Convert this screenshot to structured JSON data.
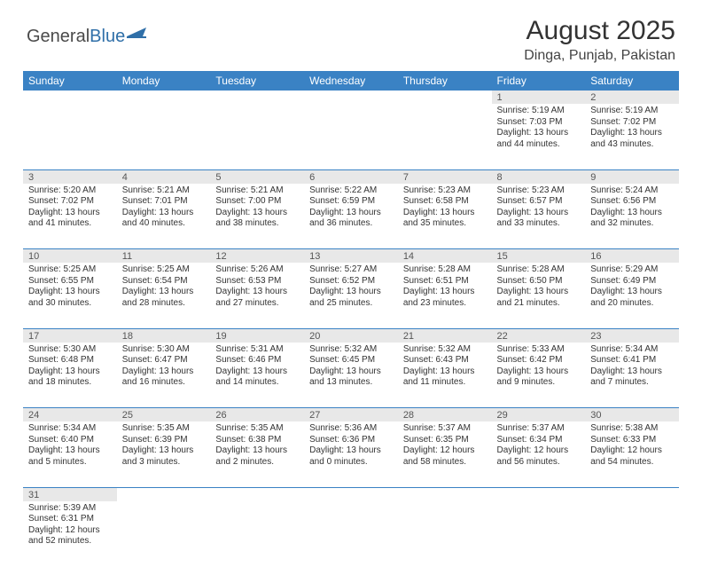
{
  "logo": {
    "part1": "General",
    "part2": "Blue"
  },
  "title": "August 2025",
  "location": "Dinga, Punjab, Pakistan",
  "colors": {
    "header_bg": "#3a82c4",
    "header_text": "#ffffff",
    "daynum_bg": "#e8e8e8",
    "row_divider": "#3a82c4",
    "logo_blue": "#2f6fa8",
    "logo_gray": "#4a4a4a"
  },
  "days_of_week": [
    "Sunday",
    "Monday",
    "Tuesday",
    "Wednesday",
    "Thursday",
    "Friday",
    "Saturday"
  ],
  "weeks": [
    [
      null,
      null,
      null,
      null,
      null,
      {
        "n": "1",
        "sunrise": "Sunrise: 5:19 AM",
        "sunset": "Sunset: 7:03 PM",
        "daylight": "Daylight: 13 hours and 44 minutes."
      },
      {
        "n": "2",
        "sunrise": "Sunrise: 5:19 AM",
        "sunset": "Sunset: 7:02 PM",
        "daylight": "Daylight: 13 hours and 43 minutes."
      }
    ],
    [
      {
        "n": "3",
        "sunrise": "Sunrise: 5:20 AM",
        "sunset": "Sunset: 7:02 PM",
        "daylight": "Daylight: 13 hours and 41 minutes."
      },
      {
        "n": "4",
        "sunrise": "Sunrise: 5:21 AM",
        "sunset": "Sunset: 7:01 PM",
        "daylight": "Daylight: 13 hours and 40 minutes."
      },
      {
        "n": "5",
        "sunrise": "Sunrise: 5:21 AM",
        "sunset": "Sunset: 7:00 PM",
        "daylight": "Daylight: 13 hours and 38 minutes."
      },
      {
        "n": "6",
        "sunrise": "Sunrise: 5:22 AM",
        "sunset": "Sunset: 6:59 PM",
        "daylight": "Daylight: 13 hours and 36 minutes."
      },
      {
        "n": "7",
        "sunrise": "Sunrise: 5:23 AM",
        "sunset": "Sunset: 6:58 PM",
        "daylight": "Daylight: 13 hours and 35 minutes."
      },
      {
        "n": "8",
        "sunrise": "Sunrise: 5:23 AM",
        "sunset": "Sunset: 6:57 PM",
        "daylight": "Daylight: 13 hours and 33 minutes."
      },
      {
        "n": "9",
        "sunrise": "Sunrise: 5:24 AM",
        "sunset": "Sunset: 6:56 PM",
        "daylight": "Daylight: 13 hours and 32 minutes."
      }
    ],
    [
      {
        "n": "10",
        "sunrise": "Sunrise: 5:25 AM",
        "sunset": "Sunset: 6:55 PM",
        "daylight": "Daylight: 13 hours and 30 minutes."
      },
      {
        "n": "11",
        "sunrise": "Sunrise: 5:25 AM",
        "sunset": "Sunset: 6:54 PM",
        "daylight": "Daylight: 13 hours and 28 minutes."
      },
      {
        "n": "12",
        "sunrise": "Sunrise: 5:26 AM",
        "sunset": "Sunset: 6:53 PM",
        "daylight": "Daylight: 13 hours and 27 minutes."
      },
      {
        "n": "13",
        "sunrise": "Sunrise: 5:27 AM",
        "sunset": "Sunset: 6:52 PM",
        "daylight": "Daylight: 13 hours and 25 minutes."
      },
      {
        "n": "14",
        "sunrise": "Sunrise: 5:28 AM",
        "sunset": "Sunset: 6:51 PM",
        "daylight": "Daylight: 13 hours and 23 minutes."
      },
      {
        "n": "15",
        "sunrise": "Sunrise: 5:28 AM",
        "sunset": "Sunset: 6:50 PM",
        "daylight": "Daylight: 13 hours and 21 minutes."
      },
      {
        "n": "16",
        "sunrise": "Sunrise: 5:29 AM",
        "sunset": "Sunset: 6:49 PM",
        "daylight": "Daylight: 13 hours and 20 minutes."
      }
    ],
    [
      {
        "n": "17",
        "sunrise": "Sunrise: 5:30 AM",
        "sunset": "Sunset: 6:48 PM",
        "daylight": "Daylight: 13 hours and 18 minutes."
      },
      {
        "n": "18",
        "sunrise": "Sunrise: 5:30 AM",
        "sunset": "Sunset: 6:47 PM",
        "daylight": "Daylight: 13 hours and 16 minutes."
      },
      {
        "n": "19",
        "sunrise": "Sunrise: 5:31 AM",
        "sunset": "Sunset: 6:46 PM",
        "daylight": "Daylight: 13 hours and 14 minutes."
      },
      {
        "n": "20",
        "sunrise": "Sunrise: 5:32 AM",
        "sunset": "Sunset: 6:45 PM",
        "daylight": "Daylight: 13 hours and 13 minutes."
      },
      {
        "n": "21",
        "sunrise": "Sunrise: 5:32 AM",
        "sunset": "Sunset: 6:43 PM",
        "daylight": "Daylight: 13 hours and 11 minutes."
      },
      {
        "n": "22",
        "sunrise": "Sunrise: 5:33 AM",
        "sunset": "Sunset: 6:42 PM",
        "daylight": "Daylight: 13 hours and 9 minutes."
      },
      {
        "n": "23",
        "sunrise": "Sunrise: 5:34 AM",
        "sunset": "Sunset: 6:41 PM",
        "daylight": "Daylight: 13 hours and 7 minutes."
      }
    ],
    [
      {
        "n": "24",
        "sunrise": "Sunrise: 5:34 AM",
        "sunset": "Sunset: 6:40 PM",
        "daylight": "Daylight: 13 hours and 5 minutes."
      },
      {
        "n": "25",
        "sunrise": "Sunrise: 5:35 AM",
        "sunset": "Sunset: 6:39 PM",
        "daylight": "Daylight: 13 hours and 3 minutes."
      },
      {
        "n": "26",
        "sunrise": "Sunrise: 5:35 AM",
        "sunset": "Sunset: 6:38 PM",
        "daylight": "Daylight: 13 hours and 2 minutes."
      },
      {
        "n": "27",
        "sunrise": "Sunrise: 5:36 AM",
        "sunset": "Sunset: 6:36 PM",
        "daylight": "Daylight: 13 hours and 0 minutes."
      },
      {
        "n": "28",
        "sunrise": "Sunrise: 5:37 AM",
        "sunset": "Sunset: 6:35 PM",
        "daylight": "Daylight: 12 hours and 58 minutes."
      },
      {
        "n": "29",
        "sunrise": "Sunrise: 5:37 AM",
        "sunset": "Sunset: 6:34 PM",
        "daylight": "Daylight: 12 hours and 56 minutes."
      },
      {
        "n": "30",
        "sunrise": "Sunrise: 5:38 AM",
        "sunset": "Sunset: 6:33 PM",
        "daylight": "Daylight: 12 hours and 54 minutes."
      }
    ],
    [
      {
        "n": "31",
        "sunrise": "Sunrise: 5:39 AM",
        "sunset": "Sunset: 6:31 PM",
        "daylight": "Daylight: 12 hours and 52 minutes."
      },
      null,
      null,
      null,
      null,
      null,
      null
    ]
  ]
}
